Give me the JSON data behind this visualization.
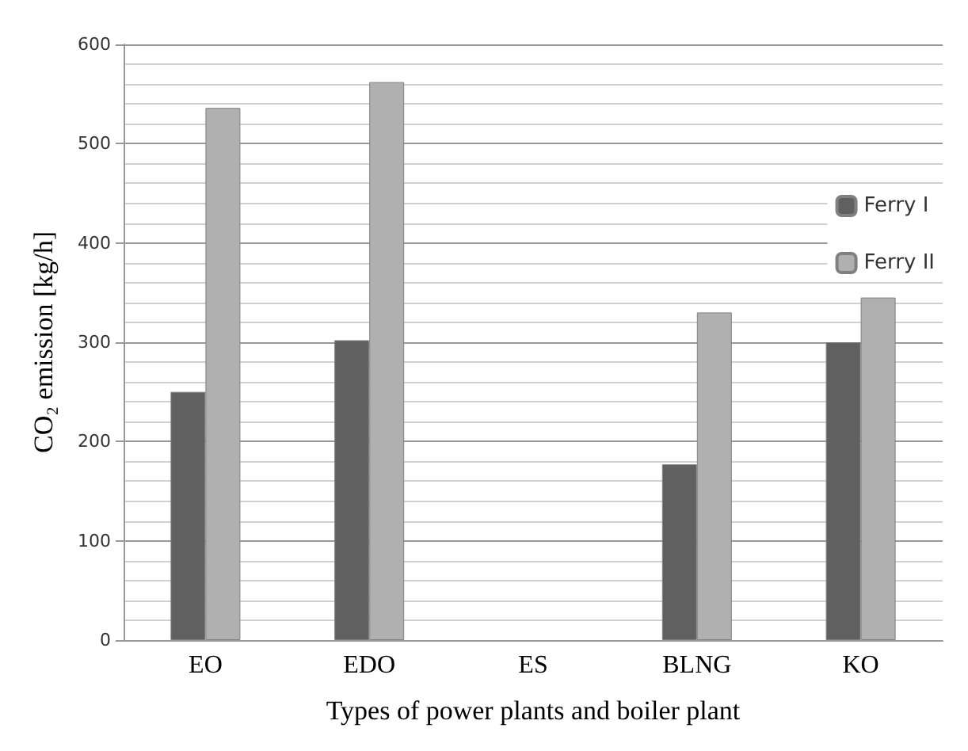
{
  "chart_data": {
    "type": "bar",
    "xlabel": "Types of power plants and boiler plant",
    "ylabel": "CO₂ emission [kg/h]",
    "categories": [
      "EO",
      "EDO",
      "ES",
      "BLNG",
      "KO"
    ],
    "series": [
      {
        "name": "Ferry I",
        "color": "#606060",
        "values": [
          250,
          302,
          null,
          177,
          300
        ]
      },
      {
        "name": "Ferry II",
        "color": "#b0b0b0",
        "values": [
          536,
          562,
          null,
          330,
          345
        ]
      }
    ],
    "ylim": [
      0,
      600
    ],
    "yticks": [
      0,
      100,
      200,
      300,
      400,
      500,
      600
    ],
    "grid": true,
    "legend": "right"
  }
}
